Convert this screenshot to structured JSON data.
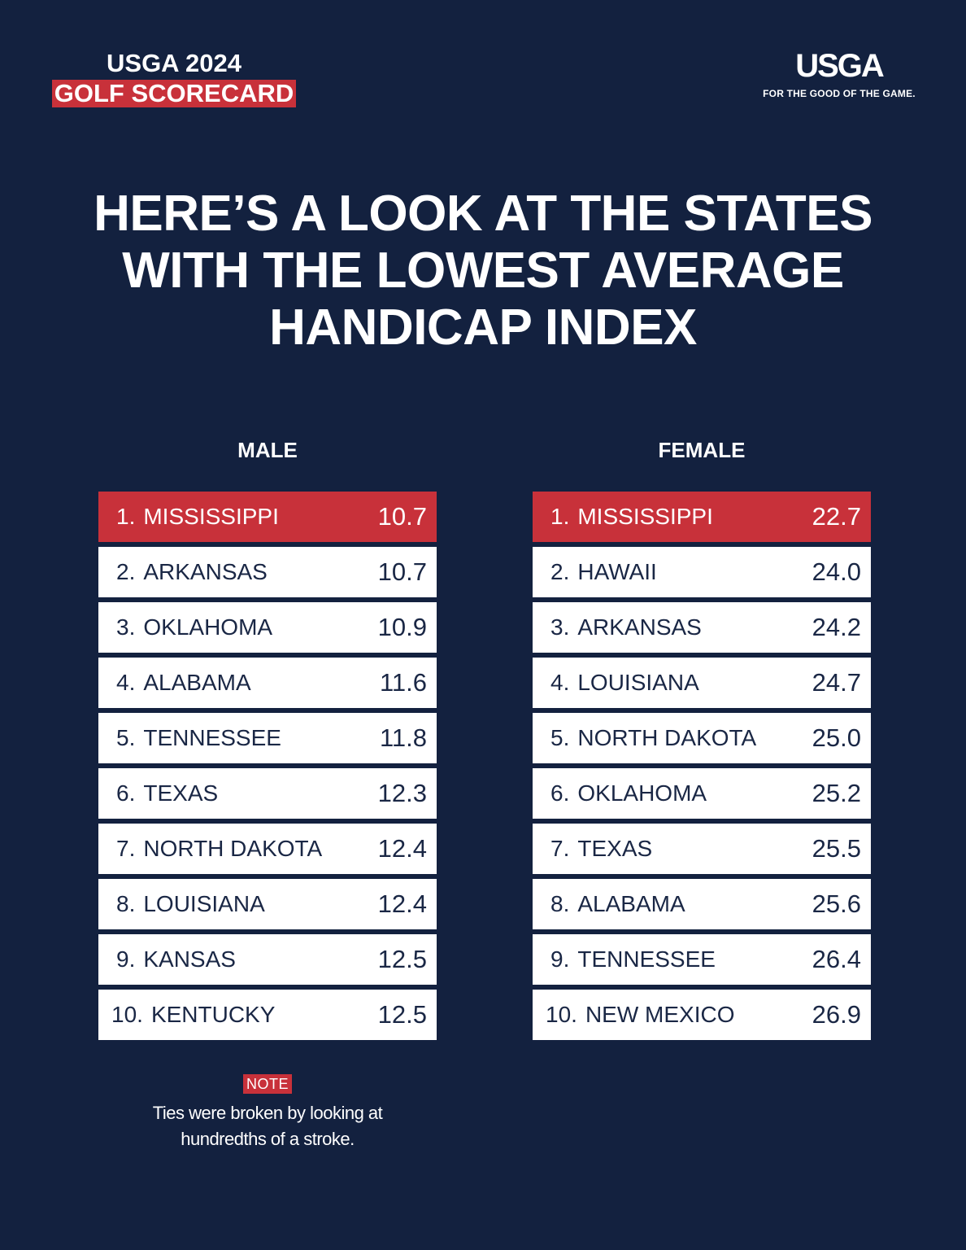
{
  "badge": {
    "line1": "USGA 2024",
    "line2": "GOLF SCORECARD"
  },
  "logo": {
    "wordmark": "USGA",
    "tagline": "FOR THE GOOD OF THE GAME."
  },
  "headline": {
    "line1": "HERE’S A LOOK AT THE STATES",
    "line2": "WITH THE LOWEST AVERAGE",
    "line3": "HANDICAP INDEX"
  },
  "colors": {
    "background": "#13213f",
    "accent": "#c8313a",
    "row": "#ffffff",
    "row_text": "#1a2745"
  },
  "chart_data": [
    {
      "type": "table",
      "title": "MALE",
      "rows": [
        {
          "rank": "1.",
          "state": "MISSISSIPPI",
          "value": "10.7"
        },
        {
          "rank": "2.",
          "state": "ARKANSAS",
          "value": "10.7"
        },
        {
          "rank": "3.",
          "state": "OKLAHOMA",
          "value": "10.9"
        },
        {
          "rank": "4.",
          "state": "ALABAMA",
          "value": "11.6"
        },
        {
          "rank": "5.",
          "state": "TENNESSEE",
          "value": "11.8"
        },
        {
          "rank": "6.",
          "state": "TEXAS",
          "value": "12.3"
        },
        {
          "rank": "7.",
          "state": "NORTH DAKOTA",
          "value": "12.4"
        },
        {
          "rank": "8.",
          "state": "LOUISIANA",
          "value": "12.4"
        },
        {
          "rank": "9.",
          "state": "KANSAS",
          "value": "12.5"
        },
        {
          "rank": "10.",
          "state": "KENTUCKY",
          "value": "12.5"
        }
      ]
    },
    {
      "type": "table",
      "title": "FEMALE",
      "rows": [
        {
          "rank": "1.",
          "state": "MISSISSIPPI",
          "value": "22.7"
        },
        {
          "rank": "2.",
          "state": "HAWAII",
          "value": "24.0"
        },
        {
          "rank": "3.",
          "state": "ARKANSAS",
          "value": "24.2"
        },
        {
          "rank": "4.",
          "state": "LOUISIANA",
          "value": "24.7"
        },
        {
          "rank": "5.",
          "state": "NORTH DAKOTA",
          "value": "25.0"
        },
        {
          "rank": "6.",
          "state": "OKLAHOMA",
          "value": "25.2"
        },
        {
          "rank": "7.",
          "state": "TEXAS",
          "value": "25.5"
        },
        {
          "rank": "8.",
          "state": "ALABAMA",
          "value": "25.6"
        },
        {
          "rank": "9.",
          "state": "TENNESSEE",
          "value": "26.4"
        },
        {
          "rank": "10.",
          "state": "NEW MEXICO",
          "value": "26.9"
        }
      ]
    }
  ],
  "note": {
    "label": "NOTE",
    "line1": "Ties were broken by looking at",
    "line2": "hundredths of a stroke."
  }
}
